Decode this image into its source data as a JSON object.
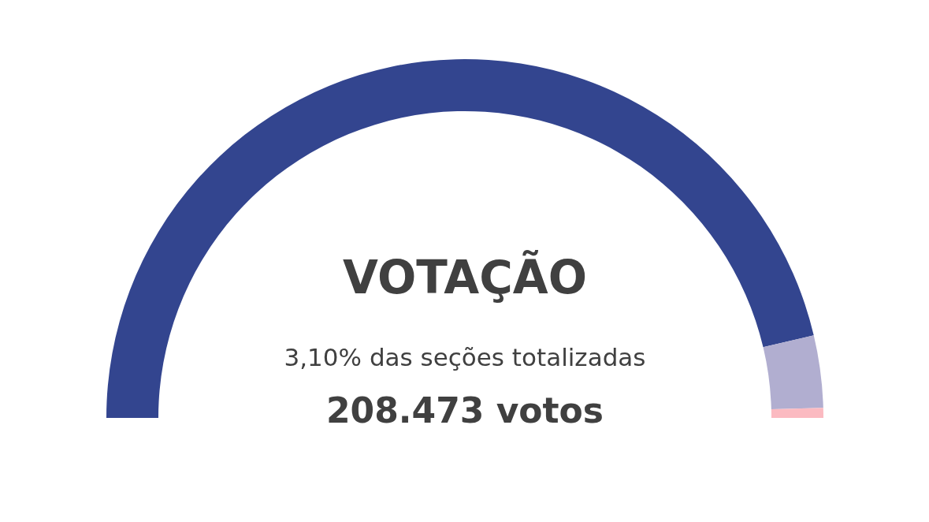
{
  "chart_data": {
    "type": "donut",
    "title": "VOTAÇÃO",
    "subtitle": "3,10% das seções totalizadas",
    "annotations": [
      "208.473 votos"
    ],
    "categories": [
      null,
      null,
      null
    ],
    "values": [
      92.6,
      6.5,
      0.9
    ],
    "colors": [
      "#33458f",
      "#b1aed0",
      "#fbbac1"
    ]
  }
}
